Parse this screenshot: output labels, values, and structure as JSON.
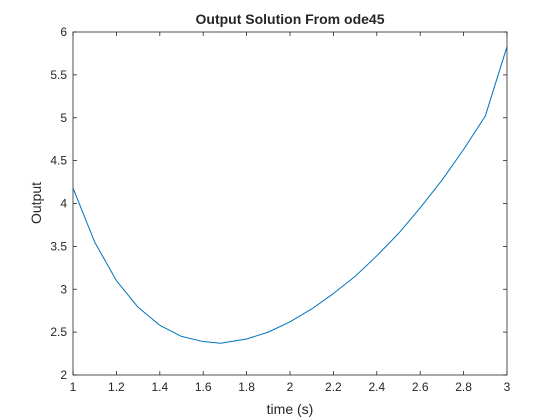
{
  "chart_data": {
    "type": "line",
    "title": "Output Solution From ode45",
    "xlabel": "time (s)",
    "ylabel": "Output",
    "xlim": [
      1,
      3
    ],
    "ylim": [
      2,
      6
    ],
    "x_ticks": [
      "1",
      "1.2",
      "1.4",
      "1.6",
      "1.8",
      "2",
      "2.2",
      "2.4",
      "2.6",
      "2.8",
      "3"
    ],
    "y_ticks": [
      "2",
      "2.5",
      "3",
      "3.5",
      "4",
      "4.5",
      "5",
      "5.5",
      "6"
    ],
    "grid": false,
    "series": [
      {
        "color": "#0072BD",
        "x": [
          1.0,
          1.1,
          1.2,
          1.3,
          1.4,
          1.5,
          1.6,
          1.68,
          1.8,
          1.9,
          2.0,
          2.1,
          2.2,
          2.3,
          2.4,
          2.5,
          2.6,
          2.7,
          2.8,
          2.9,
          3.0
        ],
        "y": [
          4.18,
          3.55,
          3.1,
          2.79,
          2.58,
          2.45,
          2.39,
          2.37,
          2.42,
          2.5,
          2.62,
          2.77,
          2.95,
          3.15,
          3.39,
          3.65,
          3.95,
          4.27,
          4.63,
          5.02,
          5.83
        ]
      }
    ]
  }
}
